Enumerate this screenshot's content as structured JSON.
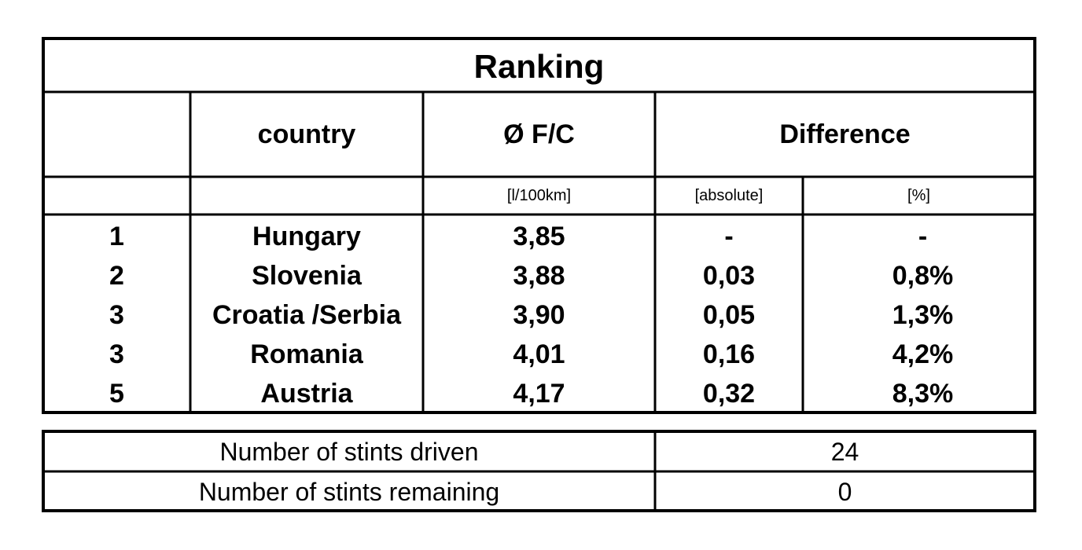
{
  "table": {
    "title": "Ranking",
    "headers": [
      "country",
      "Ø F/C",
      "Difference"
    ],
    "units": [
      "[l/100km]",
      "[absolute]",
      "[%]"
    ],
    "rows": [
      [
        "1",
        "Hungary",
        "3,85",
        "-",
        "-"
      ],
      [
        "2",
        "Slovenia",
        "3,88",
        "0,03",
        "0,8%"
      ],
      [
        "3",
        "Croatia /Serbia",
        "3,90",
        "0,05",
        "1,3%"
      ],
      [
        "3",
        "Romania",
        "4,01",
        "0,16",
        "4,2%"
      ],
      [
        "5",
        "Austria",
        "4,17",
        "0,32",
        "8,3%"
      ]
    ]
  },
  "summary": {
    "rows": [
      [
        "Number of stints driven",
        "24"
      ],
      [
        "Number of stints remaining",
        "0"
      ]
    ]
  }
}
